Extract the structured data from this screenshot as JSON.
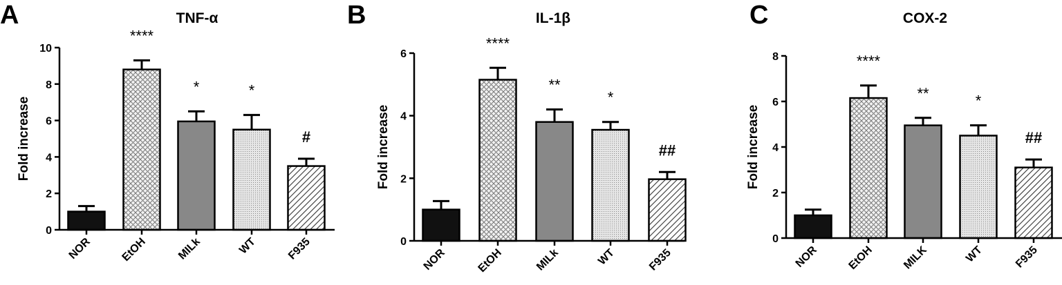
{
  "chart_data": [
    {
      "type": "bar",
      "panel": "A",
      "title": "TNF-α",
      "xlabel": "",
      "ylabel": "Fold increase",
      "ylim": [
        0,
        10
      ],
      "yticks": [
        0,
        2,
        4,
        6,
        8,
        10
      ],
      "categories": [
        "NOR",
        "EtOH",
        "MILk",
        "WT",
        "F935"
      ],
      "values": [
        1.0,
        8.8,
        5.95,
        5.5,
        3.5
      ],
      "errors": [
        0.3,
        0.5,
        0.55,
        0.8,
        0.4
      ],
      "annotations": [
        "",
        "****",
        "*",
        "*",
        "#"
      ],
      "grid": false
    },
    {
      "type": "bar",
      "panel": "B",
      "title": "IL-1β",
      "xlabel": "",
      "ylabel": "Fold increase",
      "ylim": [
        0,
        6
      ],
      "yticks": [
        0,
        2,
        4,
        6
      ],
      "categories": [
        "NOR",
        "EtOH",
        "MILk",
        "WT",
        "F935"
      ],
      "values": [
        1.0,
        5.15,
        3.8,
        3.55,
        1.97
      ],
      "errors": [
        0.27,
        0.38,
        0.4,
        0.25,
        0.23
      ],
      "annotations": [
        "",
        "****",
        "**",
        "*",
        "##"
      ],
      "grid": false
    },
    {
      "type": "bar",
      "panel": "C",
      "title": "COX-2",
      "xlabel": "",
      "ylabel": "Fold increase",
      "ylim": [
        0,
        8
      ],
      "yticks": [
        0,
        2,
        4,
        6,
        8
      ],
      "categories": [
        "NOR",
        "EtOH",
        "MILK",
        "WT",
        "F935"
      ],
      "values": [
        1.0,
        6.15,
        4.95,
        4.5,
        3.1
      ],
      "errors": [
        0.25,
        0.55,
        0.33,
        0.45,
        0.35
      ],
      "annotations": [
        "",
        "****",
        "**",
        "*",
        "##"
      ],
      "grid": false
    }
  ]
}
